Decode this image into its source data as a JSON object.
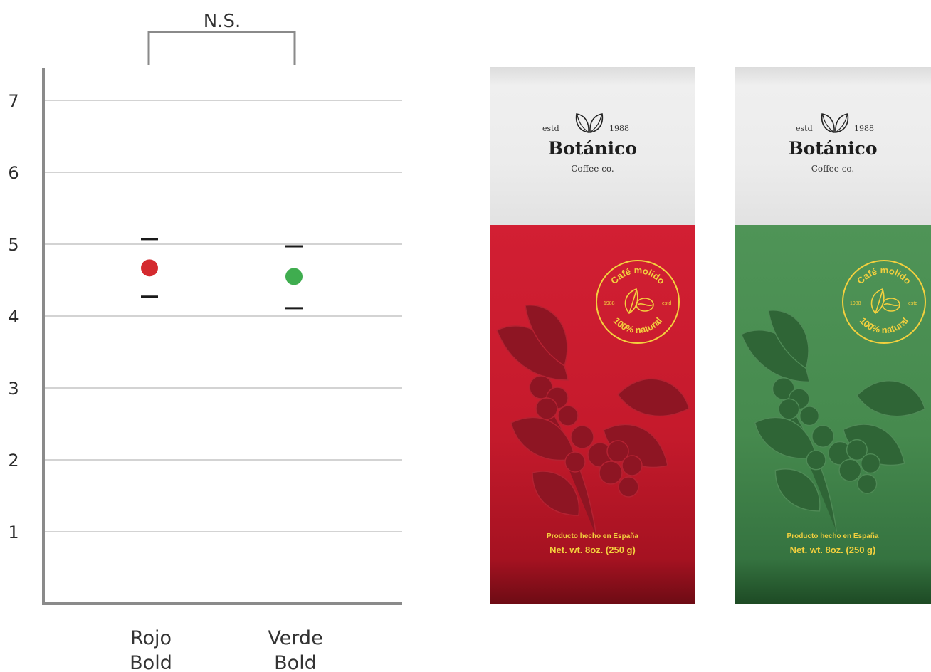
{
  "chart_data": {
    "type": "scatter",
    "title": "",
    "xlabel": "",
    "ylabel": "",
    "ylim": [
      0,
      7
    ],
    "yticks": [
      1,
      2,
      3,
      4,
      5,
      6,
      7
    ],
    "categories": [
      "Rojo Bold",
      "Verde Bold"
    ],
    "category_lines": [
      [
        "Rojo",
        "Bold"
      ],
      [
        "Verde",
        "Bold"
      ]
    ],
    "points": [
      {
        "category": "Rojo Bold",
        "mean": 4.67,
        "upper": 5.07,
        "lower": 4.27,
        "color": "#d42a2f"
      },
      {
        "category": "Verde Bold",
        "mean": 4.55,
        "upper": 4.97,
        "lower": 4.11,
        "color": "#3fad4f"
      }
    ],
    "grid": true,
    "significance": {
      "label": "N.S.",
      "between": [
        "Rojo Bold",
        "Verde Bold"
      ]
    }
  },
  "packages": [
    {
      "variant": "red",
      "estd": "estd",
      "year": "1988",
      "brand": "Botánico",
      "subbrand": "Coffee co.",
      "seal_top": "Café molido",
      "seal_bottom": "100% natural",
      "seal_left": "1988",
      "seal_right": "estd",
      "made_in": "Producto hecho en España",
      "net_weight": "Net. wt. 8oz. (250 g)"
    },
    {
      "variant": "green",
      "estd": "estd",
      "year": "1988",
      "brand": "Botánico",
      "subbrand": "Coffee co.",
      "seal_top": "Café molido",
      "seal_bottom": "100% natural",
      "seal_left": "1988",
      "seal_right": "estd",
      "made_in": "Producto hecho en España",
      "net_weight": "Net. wt. 8oz. (250 g)"
    }
  ],
  "colors": {
    "red_pack": "#c51a2c",
    "green_pack": "#468a4e",
    "seal_gold": "#f3d03e"
  }
}
